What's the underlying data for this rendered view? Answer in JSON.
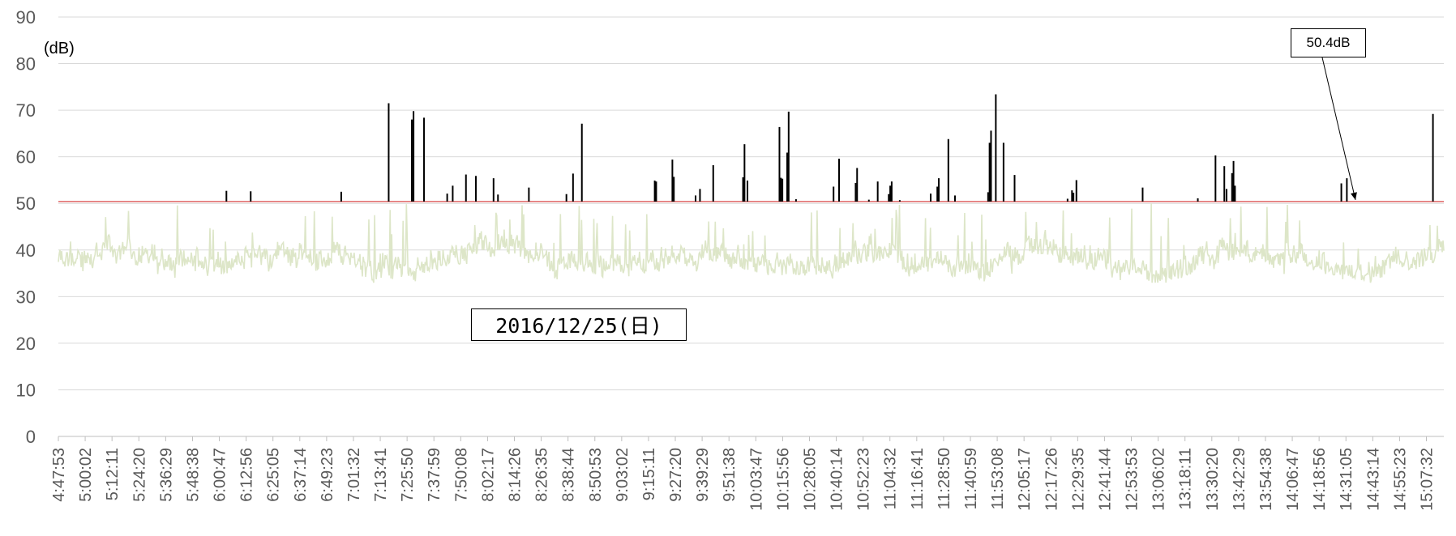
{
  "chart_data": {
    "type": "line",
    "ylabel": "(dB)",
    "ylim": [
      0,
      90
    ],
    "yticks": [
      "0",
      "10",
      "20",
      "30",
      "40",
      "50",
      "60",
      "70",
      "80",
      "90"
    ],
    "x_tick_labels": [
      "4:47:53",
      "5:00:02",
      "5:12:11",
      "5:24:20",
      "5:36:29",
      "5:48:38",
      "6:00:47",
      "6:12:56",
      "6:25:05",
      "6:37:14",
      "6:49:23",
      "7:01:32",
      "7:13:41",
      "7:25:50",
      "7:37:59",
      "7:50:08",
      "8:02:17",
      "8:14:26",
      "8:26:35",
      "8:38:44",
      "8:50:53",
      "9:03:02",
      "9:15:11",
      "9:27:20",
      "9:39:29",
      "9:51:38",
      "10:03:47",
      "10:15:56",
      "10:28:05",
      "10:40:14",
      "10:52:23",
      "11:04:32",
      "11:16:41",
      "11:28:50",
      "11:40:59",
      "11:53:08",
      "12:05:17",
      "12:17:26",
      "12:29:35",
      "12:41:44",
      "12:53:53",
      "13:06:02",
      "13:18:11",
      "13:30:20",
      "13:42:29",
      "13:54:38",
      "14:06:47",
      "14:18:56",
      "14:31:05",
      "14:43:14",
      "14:55:23",
      "15:07:32"
    ],
    "threshold": {
      "value": 50.4,
      "label": "50.4dB",
      "color": "#e06666"
    },
    "date_label": "2016/12/25(日)",
    "background_series": {
      "color": "#dde6c8",
      "typical_min": 33,
      "typical_max": 50,
      "baseline": 38
    },
    "peaks": [
      {
        "time": "6:04:00",
        "value": 52.7
      },
      {
        "time": "6:15:00",
        "value": 52.6
      },
      {
        "time": "6:56:00",
        "value": 52.5
      },
      {
        "time": "7:17:30",
        "value": 71.5
      },
      {
        "time": "7:28:00",
        "value": 68.0
      },
      {
        "time": "7:28:45",
        "value": 69.8
      },
      {
        "time": "7:33:30",
        "value": 68.4
      },
      {
        "time": "7:44:00",
        "value": 52.1
      },
      {
        "time": "7:46:30",
        "value": 53.8
      },
      {
        "time": "7:52:30",
        "value": 56.2
      },
      {
        "time": "7:57:00",
        "value": 55.9
      },
      {
        "time": "8:05:00",
        "value": 55.4
      },
      {
        "time": "8:07:00",
        "value": 51.9
      },
      {
        "time": "8:21:00",
        "value": 53.4
      },
      {
        "time": "8:38:00",
        "value": 52.0
      },
      {
        "time": "8:41:00",
        "value": 56.4
      },
      {
        "time": "8:45:00",
        "value": 67.1
      },
      {
        "time": "9:18:00",
        "value": 54.9
      },
      {
        "time": "9:18:40",
        "value": 54.7
      },
      {
        "time": "9:26:00",
        "value": 59.4
      },
      {
        "time": "9:26:40",
        "value": 55.7
      },
      {
        "time": "9:36:30",
        "value": 51.7
      },
      {
        "time": "9:38:30",
        "value": 53.1
      },
      {
        "time": "9:44:30",
        "value": 58.2
      },
      {
        "time": "9:58:00",
        "value": 55.6
      },
      {
        "time": "9:58:40",
        "value": 62.7
      },
      {
        "time": "10:00:00",
        "value": 54.9
      },
      {
        "time": "10:14:30",
        "value": 66.4
      },
      {
        "time": "10:15:10",
        "value": 55.5
      },
      {
        "time": "10:15:50",
        "value": 55.3
      },
      {
        "time": "10:18:00",
        "value": 60.9
      },
      {
        "time": "10:18:40",
        "value": 69.7
      },
      {
        "time": "10:22:00",
        "value": 50.9
      },
      {
        "time": "10:39:00",
        "value": 53.6
      },
      {
        "time": "10:41:30",
        "value": 59.6
      },
      {
        "time": "10:49:00",
        "value": 54.4
      },
      {
        "time": "10:49:40",
        "value": 57.6
      },
      {
        "time": "10:55:00",
        "value": 50.8
      },
      {
        "time": "10:59:00",
        "value": 54.7
      },
      {
        "time": "11:04:00",
        "value": 52.0
      },
      {
        "time": "11:04:40",
        "value": 53.8
      },
      {
        "time": "11:05:20",
        "value": 54.7
      },
      {
        "time": "11:09:00",
        "value": 50.7
      },
      {
        "time": "11:23:00",
        "value": 52.1
      },
      {
        "time": "11:26:00",
        "value": 53.6
      },
      {
        "time": "11:26:40",
        "value": 55.4
      },
      {
        "time": "11:31:00",
        "value": 63.8
      },
      {
        "time": "11:34:00",
        "value": 51.7
      },
      {
        "time": "11:49:00",
        "value": 52.4
      },
      {
        "time": "11:49:40",
        "value": 63.0
      },
      {
        "time": "11:50:20",
        "value": 65.6
      },
      {
        "time": "11:52:30",
        "value": 73.4
      },
      {
        "time": "11:56:00",
        "value": 63.0
      },
      {
        "time": "12:01:00",
        "value": 56.1
      },
      {
        "time": "12:25:00",
        "value": 51.0
      },
      {
        "time": "12:27:00",
        "value": 52.8
      },
      {
        "time": "12:27:40",
        "value": 52.3
      },
      {
        "time": "12:29:00",
        "value": 55.0
      },
      {
        "time": "12:59:00",
        "value": 53.4
      },
      {
        "time": "13:24:00",
        "value": 51.1
      },
      {
        "time": "13:32:00",
        "value": 60.3
      },
      {
        "time": "13:36:00",
        "value": 58.0
      },
      {
        "time": "13:37:00",
        "value": 53.1
      },
      {
        "time": "13:39:30",
        "value": 56.5
      },
      {
        "time": "13:40:10",
        "value": 59.1
      },
      {
        "time": "13:40:50",
        "value": 53.8
      },
      {
        "time": "14:29:00",
        "value": 54.3
      },
      {
        "time": "14:31:30",
        "value": 55.4
      },
      {
        "time": "15:10:30",
        "value": 69.2
      }
    ]
  }
}
